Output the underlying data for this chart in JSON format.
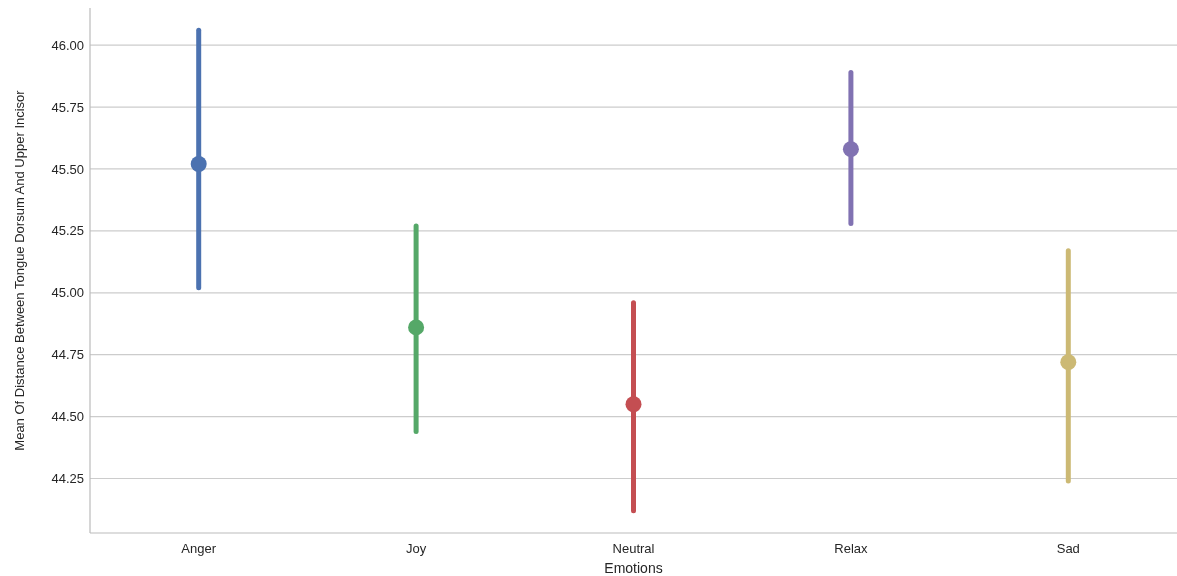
{
  "chart_data": {
    "type": "scatter",
    "xlabel": "Emotions",
    "ylabel": "Mean Of Distance Between Tongue Dorsum And Upper Incisor",
    "categories": [
      "Anger",
      "Joy",
      "Neutral",
      "Relax",
      "Sad"
    ],
    "values": [
      45.52,
      44.86,
      44.55,
      45.58,
      44.72
    ],
    "errors": [
      [
        45.02,
        46.06
      ],
      [
        44.44,
        45.27
      ],
      [
        44.12,
        44.96
      ],
      [
        45.28,
        45.89
      ],
      [
        44.24,
        45.17
      ]
    ],
    "colors": [
      "#4c72b0",
      "#55a868",
      "#c44e52",
      "#8172b2",
      "#ccb974"
    ],
    "ylim": [
      44.03,
      46.15
    ],
    "yticks": [
      {
        "value": 44.25,
        "label": "44.25"
      },
      {
        "value": 44.5,
        "label": "44.50"
      },
      {
        "value": 44.75,
        "label": "44.75"
      },
      {
        "value": 45,
        "label": "45.00"
      },
      {
        "value": 45.25,
        "label": "45.25"
      },
      {
        "value": 45.5,
        "label": "45.50"
      },
      {
        "value": 45.75,
        "label": "45.75"
      },
      {
        "value": 46,
        "label": "46.00"
      }
    ],
    "grid": "y",
    "marker": "circle"
  }
}
